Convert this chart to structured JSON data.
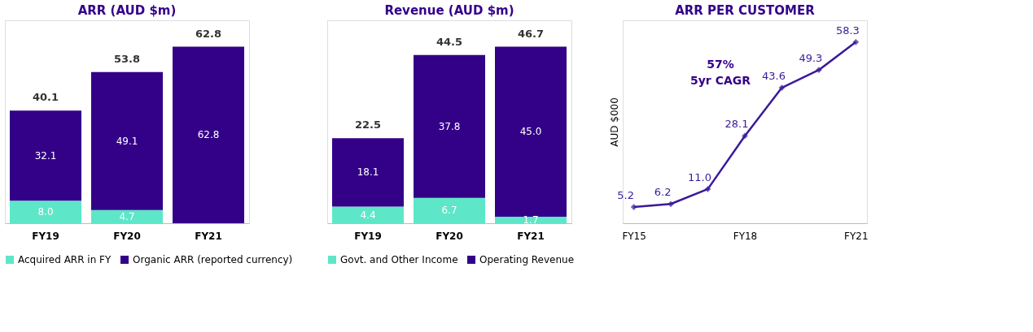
{
  "chart_data": [
    {
      "type": "bar",
      "title": "ARR (AUD $m)",
      "categories": [
        "FY19",
        "FY20",
        "FY21"
      ],
      "stacked": true,
      "legend": "bottom",
      "grid": false,
      "series": [
        {
          "name": "Acquired ARR in FY",
          "color": "#5ee6c8",
          "values": [
            8.0,
            4.7,
            0
          ],
          "value_labels": [
            "8.0",
            "4.7",
            null
          ]
        },
        {
          "name": "Organic ARR (reported currency)",
          "color": "#330088",
          "values": [
            32.1,
            49.1,
            62.8
          ],
          "value_labels": [
            "32.1",
            "49.1",
            "62.8"
          ]
        }
      ],
      "totals": [
        "40.1",
        "53.8",
        "62.8"
      ]
    },
    {
      "type": "bar",
      "title": "Revenue (AUD $m)",
      "categories": [
        "FY19",
        "FY20",
        "FY21"
      ],
      "stacked": true,
      "legend": "bottom",
      "grid": false,
      "series": [
        {
          "name": "Govt. and Other Income",
          "color": "#5ee6c8",
          "values": [
            4.4,
            6.7,
            1.7
          ],
          "value_labels": [
            "4.4",
            "6.7",
            "1.7"
          ]
        },
        {
          "name": "Operating Revenue",
          "color": "#330088",
          "values": [
            18.1,
            37.8,
            45.0
          ],
          "value_labels": [
            "18.1",
            "37.8",
            "45.0"
          ]
        }
      ],
      "totals": [
        "22.5",
        "44.5",
        "46.7"
      ]
    },
    {
      "type": "line",
      "title": "ARR PER CUSTOMER",
      "ylabel": "AUD $000",
      "categories": [
        "FY15",
        null,
        null,
        "FY18",
        null,
        null,
        "FY21"
      ],
      "marker": "diamond",
      "grid": false,
      "series": [
        {
          "color": "#3a1a9a",
          "values": [
            5.2,
            6.2,
            11.0,
            28.1,
            43.6,
            49.3,
            58.3
          ],
          "value_labels": [
            "5.2",
            "6.2",
            "11.0",
            "28.1",
            "43.6",
            "49.3",
            "58.3"
          ]
        }
      ],
      "annotations": [
        "57%\n5yr CAGR"
      ]
    }
  ]
}
